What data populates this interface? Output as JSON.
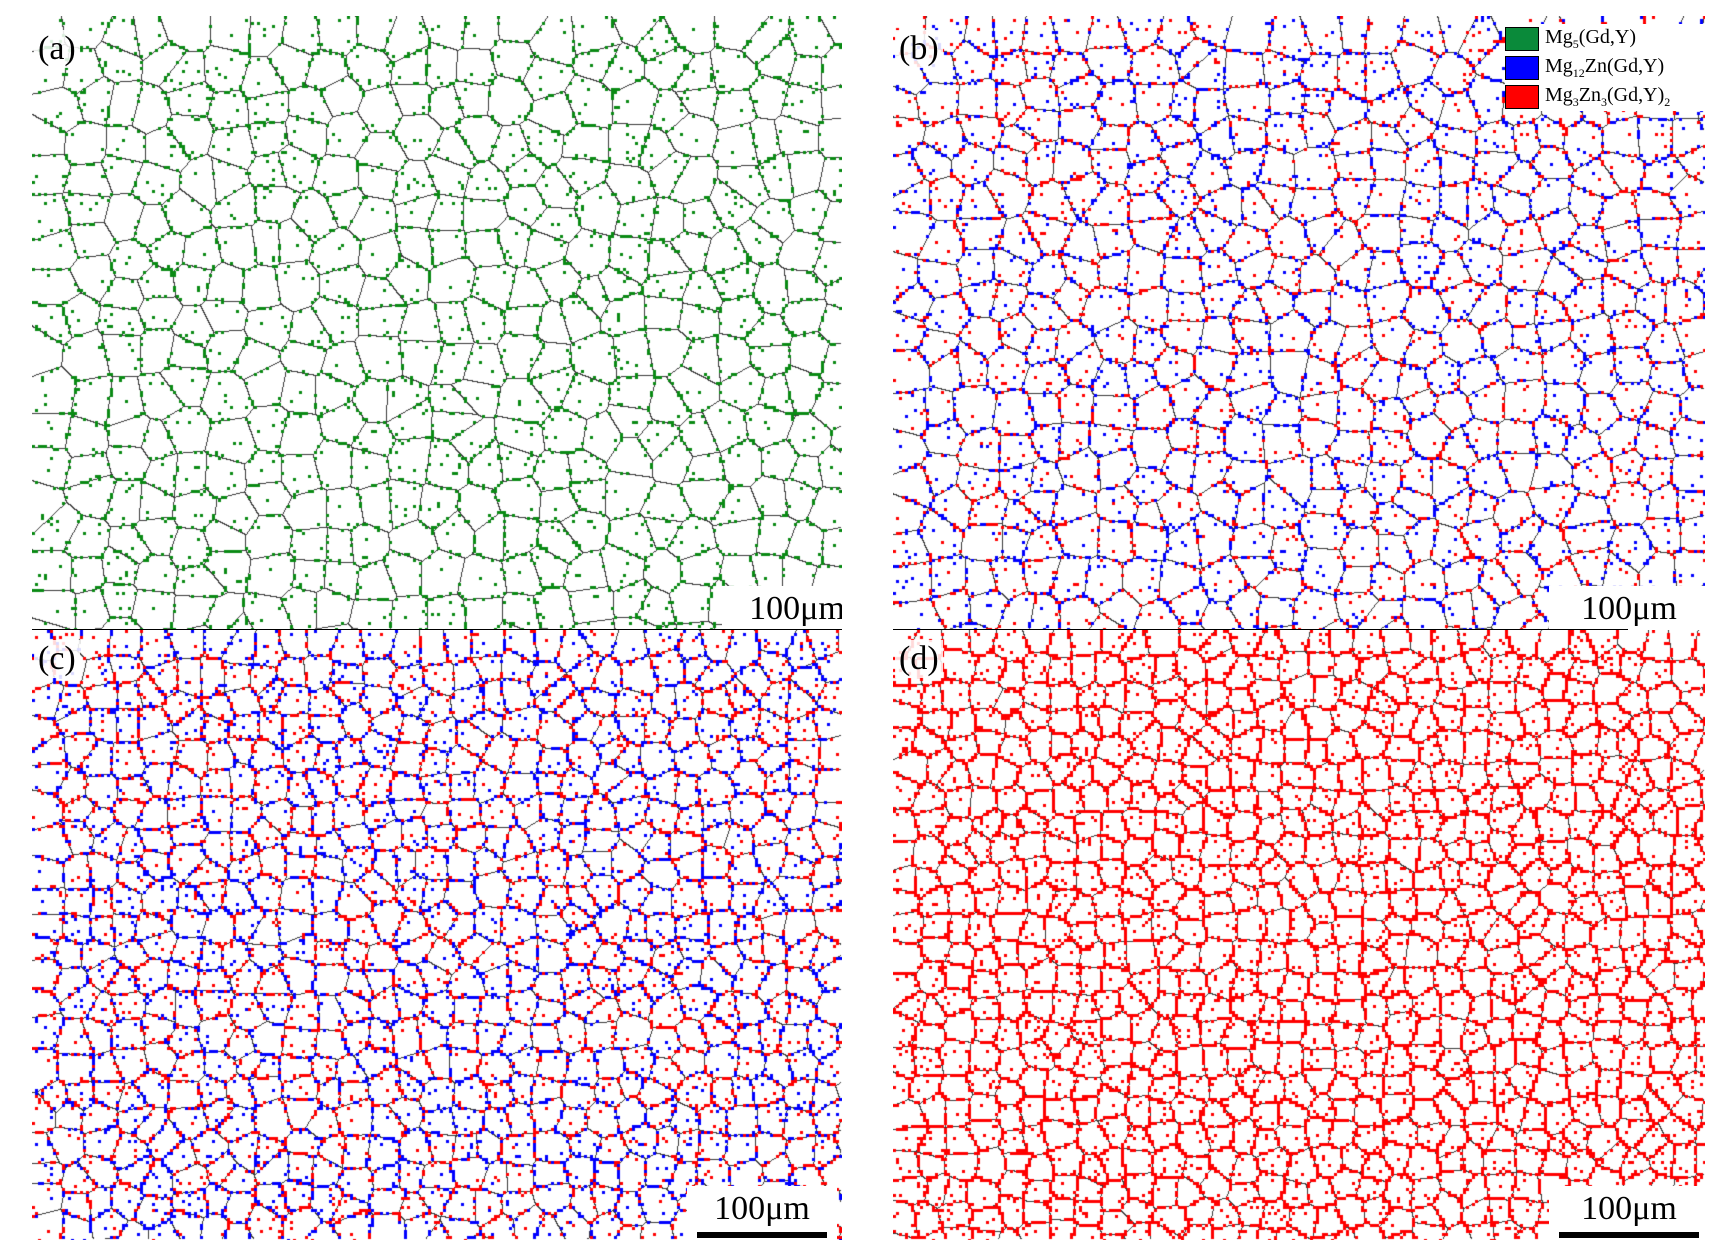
{
  "panels": [
    {
      "id": "a",
      "label": "(a)",
      "scale": "100μm",
      "phases": [
        "#0a8a14"
      ]
    },
    {
      "id": "b",
      "label": "(b)",
      "scale": "100μm",
      "phases": [
        "#0000ff",
        "#ff0000"
      ]
    },
    {
      "id": "c",
      "label": "(c)",
      "scale": "100μm",
      "phases": [
        "#0000ff",
        "#ff0000"
      ]
    },
    {
      "id": "d",
      "label": "(d)",
      "scale": "100μm",
      "phases": [
        "#ff0000"
      ]
    }
  ],
  "legend": [
    {
      "base": "Mg",
      "sub1": "5",
      "mid": "(Gd,Y)",
      "sub2": "",
      "tail": "",
      "color": "#0a8a3a"
    },
    {
      "base": "Mg",
      "sub1": "12",
      "mid": "Zn(Gd,Y)",
      "sub2": "",
      "tail": "",
      "color": "#0000ff"
    },
    {
      "base": "Mg",
      "sub1": "3",
      "mid": "Zn",
      "sub2": "3",
      "tail": "(Gd,Y)",
      "sub3": "2",
      "color": "#ff0000"
    }
  ],
  "colors": {
    "grain_boundary": "#3a3a3a",
    "background": "#ffffff"
  }
}
